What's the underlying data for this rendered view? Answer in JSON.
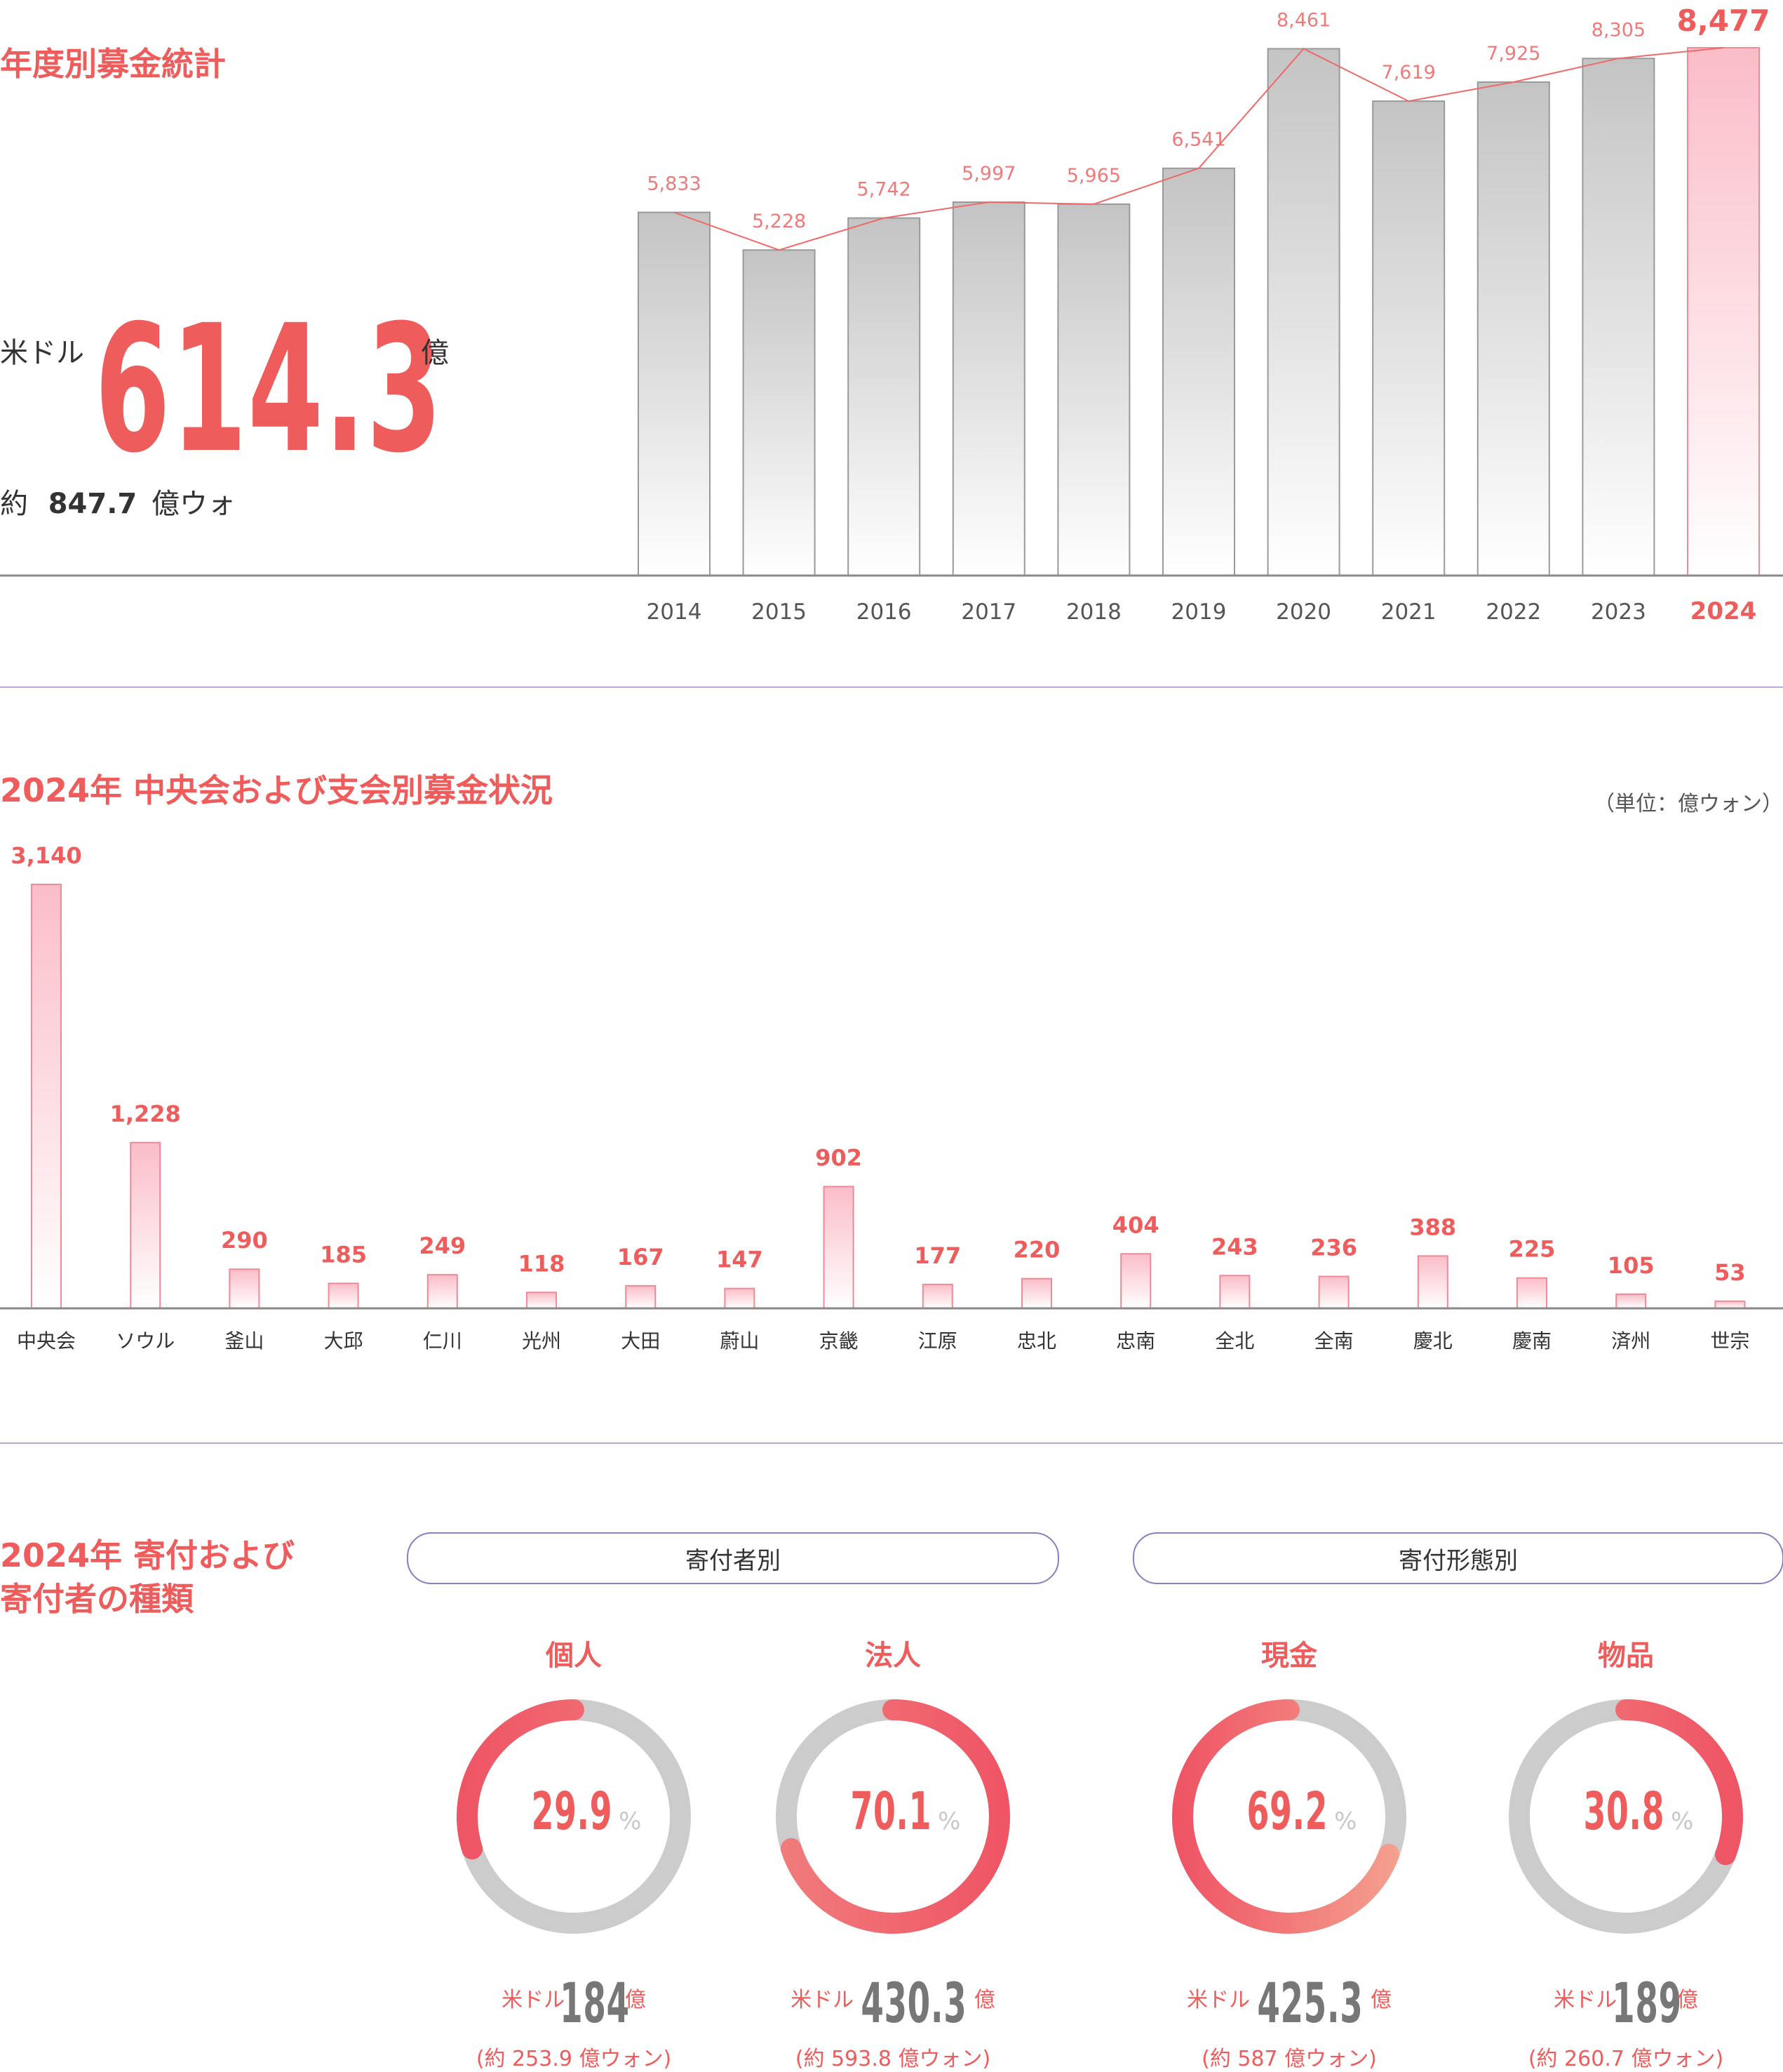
{
  "section1": {
    "title": "年度別募金統計",
    "currency_label": "米ドル",
    "total_usd": "614.3",
    "unit_label": "億",
    "approx_prefix": "約",
    "total_krw": "847.7",
    "krw_unit": "億ウォ"
  },
  "section2": {
    "title": "2024年 中央会および支会別募金状況",
    "unit_note": "（単位：億ウォン）"
  },
  "section3": {
    "title_line1": "2024年 寄付および",
    "title_line2": "寄付者の種類",
    "group_donor": "寄付者別",
    "group_type": "寄付形態別",
    "donuts": [
      {
        "label": "個人",
        "percent": 29.9,
        "percent_text": "29.9",
        "pct_unit": "%",
        "cur": "米ドル",
        "usd": "184",
        "unit": "億",
        "krw_text": "(約 253.9 億ウォン)",
        "color": "#ef5565",
        "start_color": "#f07b7b"
      },
      {
        "label": "法人",
        "percent": 70.1,
        "percent_text": "70.1",
        "pct_unit": "%",
        "cur": "米ドル",
        "usd": "430.3",
        "unit": "億",
        "krw_text": "(約 593.8 億ウォン)",
        "color": "#ef5565",
        "start_color": "#f07b7b"
      },
      {
        "label": "現金",
        "percent": 69.2,
        "percent_text": "69.2",
        "pct_unit": "%",
        "cur": "米ドル",
        "usd": "425.3",
        "unit": "億",
        "krw_text": "(約 587 億ウォン)",
        "color": "#ef5565",
        "start_color": "#f4a08e"
      },
      {
        "label": "物品",
        "percent": 30.8,
        "percent_text": "30.8",
        "pct_unit": "%",
        "cur": "米ドル",
        "usd": "189",
        "unit": "億",
        "krw_text": "(約 260.7 億ウォン)",
        "color": "#ef5565",
        "start_color": "#f07b7b"
      }
    ]
  },
  "chart_data": [
    {
      "type": "bar",
      "title": "年度別募金統計",
      "categories": [
        "2014",
        "2015",
        "2016",
        "2017",
        "2018",
        "2019",
        "2020",
        "2021",
        "2022",
        "2023",
        "2024"
      ],
      "values": [
        5833,
        5228,
        5742,
        5997,
        5965,
        6541,
        8461,
        7619,
        7925,
        8305,
        8477
      ],
      "value_labels": [
        "5,833",
        "5,228",
        "5,742",
        "5,997",
        "5,965",
        "6,541",
        "8,461",
        "7,619",
        "7,925",
        "8,305",
        "8,477"
      ],
      "overlay": "line",
      "highlight": "2024",
      "ylim": [
        0,
        8800
      ],
      "grid": false,
      "colors": {
        "bar": "#c9c9c9",
        "highlight": "#fbc3cc",
        "line": "#ee6a6a",
        "label": "#ee7a7a"
      }
    },
    {
      "type": "bar",
      "title": "2024年 中央会および支会別募金状況",
      "unit": "（単位：億ウォン）",
      "categories": [
        "中央会",
        "ソウル",
        "釜山",
        "大邱",
        "仁川",
        "光州",
        "大田",
        "蔚山",
        "京畿",
        "江原",
        "忠北",
        "忠南",
        "全北",
        "全南",
        "慶北",
        "慶南",
        "済州",
        "世宗"
      ],
      "values": [
        3140,
        1228,
        290,
        185,
        249,
        118,
        167,
        147,
        902,
        177,
        220,
        404,
        243,
        236,
        388,
        225,
        105,
        53
      ],
      "value_labels": [
        "3,140",
        "1,228",
        "290",
        "185",
        "249",
        "118",
        "167",
        "147",
        "902",
        "177",
        "220",
        "404",
        "243",
        "236",
        "388",
        "225",
        "105",
        "53"
      ],
      "ylim": [
        0,
        3140
      ],
      "grid": false,
      "colors": {
        "bar": "#fbc3cc",
        "label": "#ee5c5c"
      }
    }
  ]
}
